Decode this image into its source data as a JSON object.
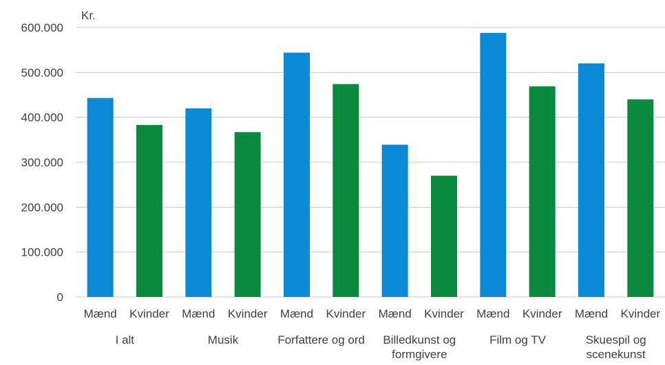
{
  "chart_data": {
    "type": "bar",
    "title": "",
    "ylabel": "Kr.",
    "xlabel": "",
    "ylim": [
      0,
      600000
    ],
    "yticks": [
      0,
      100000,
      200000,
      300000,
      400000,
      500000,
      600000
    ],
    "ytick_labels": [
      "0",
      "100.000",
      "200.000",
      "300.000",
      "400.000",
      "500.000",
      "600.000"
    ],
    "grid": true,
    "legend": "none",
    "groups": [
      {
        "label": [
          "I alt"
        ],
        "bars": [
          {
            "label": "Mænd",
            "value": 443000
          },
          {
            "label": "Kvinder",
            "value": 383000
          }
        ]
      },
      {
        "label": [
          "Musik"
        ],
        "bars": [
          {
            "label": "Mænd",
            "value": 420000
          },
          {
            "label": "Kvinder",
            "value": 367000
          }
        ]
      },
      {
        "label": [
          "Forfattere og ord"
        ],
        "bars": [
          {
            "label": "Mænd",
            "value": 544000
          },
          {
            "label": "Kvinder",
            "value": 474000
          }
        ]
      },
      {
        "label": [
          "Billedkunst og",
          "formgivere"
        ],
        "bars": [
          {
            "label": "Mænd",
            "value": 339000
          },
          {
            "label": "Kvinder",
            "value": 270000
          }
        ]
      },
      {
        "label": [
          "Film og TV"
        ],
        "bars": [
          {
            "label": "Mænd",
            "value": 588000
          },
          {
            "label": "Kvinder",
            "value": 469000
          }
        ]
      },
      {
        "label": [
          "Skuespil og",
          "scenekunst"
        ],
        "bars": [
          {
            "label": "Mænd",
            "value": 520000
          },
          {
            "label": "Kvinder",
            "value": 440000
          }
        ]
      }
    ],
    "colors": {
      "Mænd": "#0A8AD6",
      "Kvinder": "#0A8A3C",
      "grid": "#C8C8C8",
      "text": "#404040"
    }
  }
}
